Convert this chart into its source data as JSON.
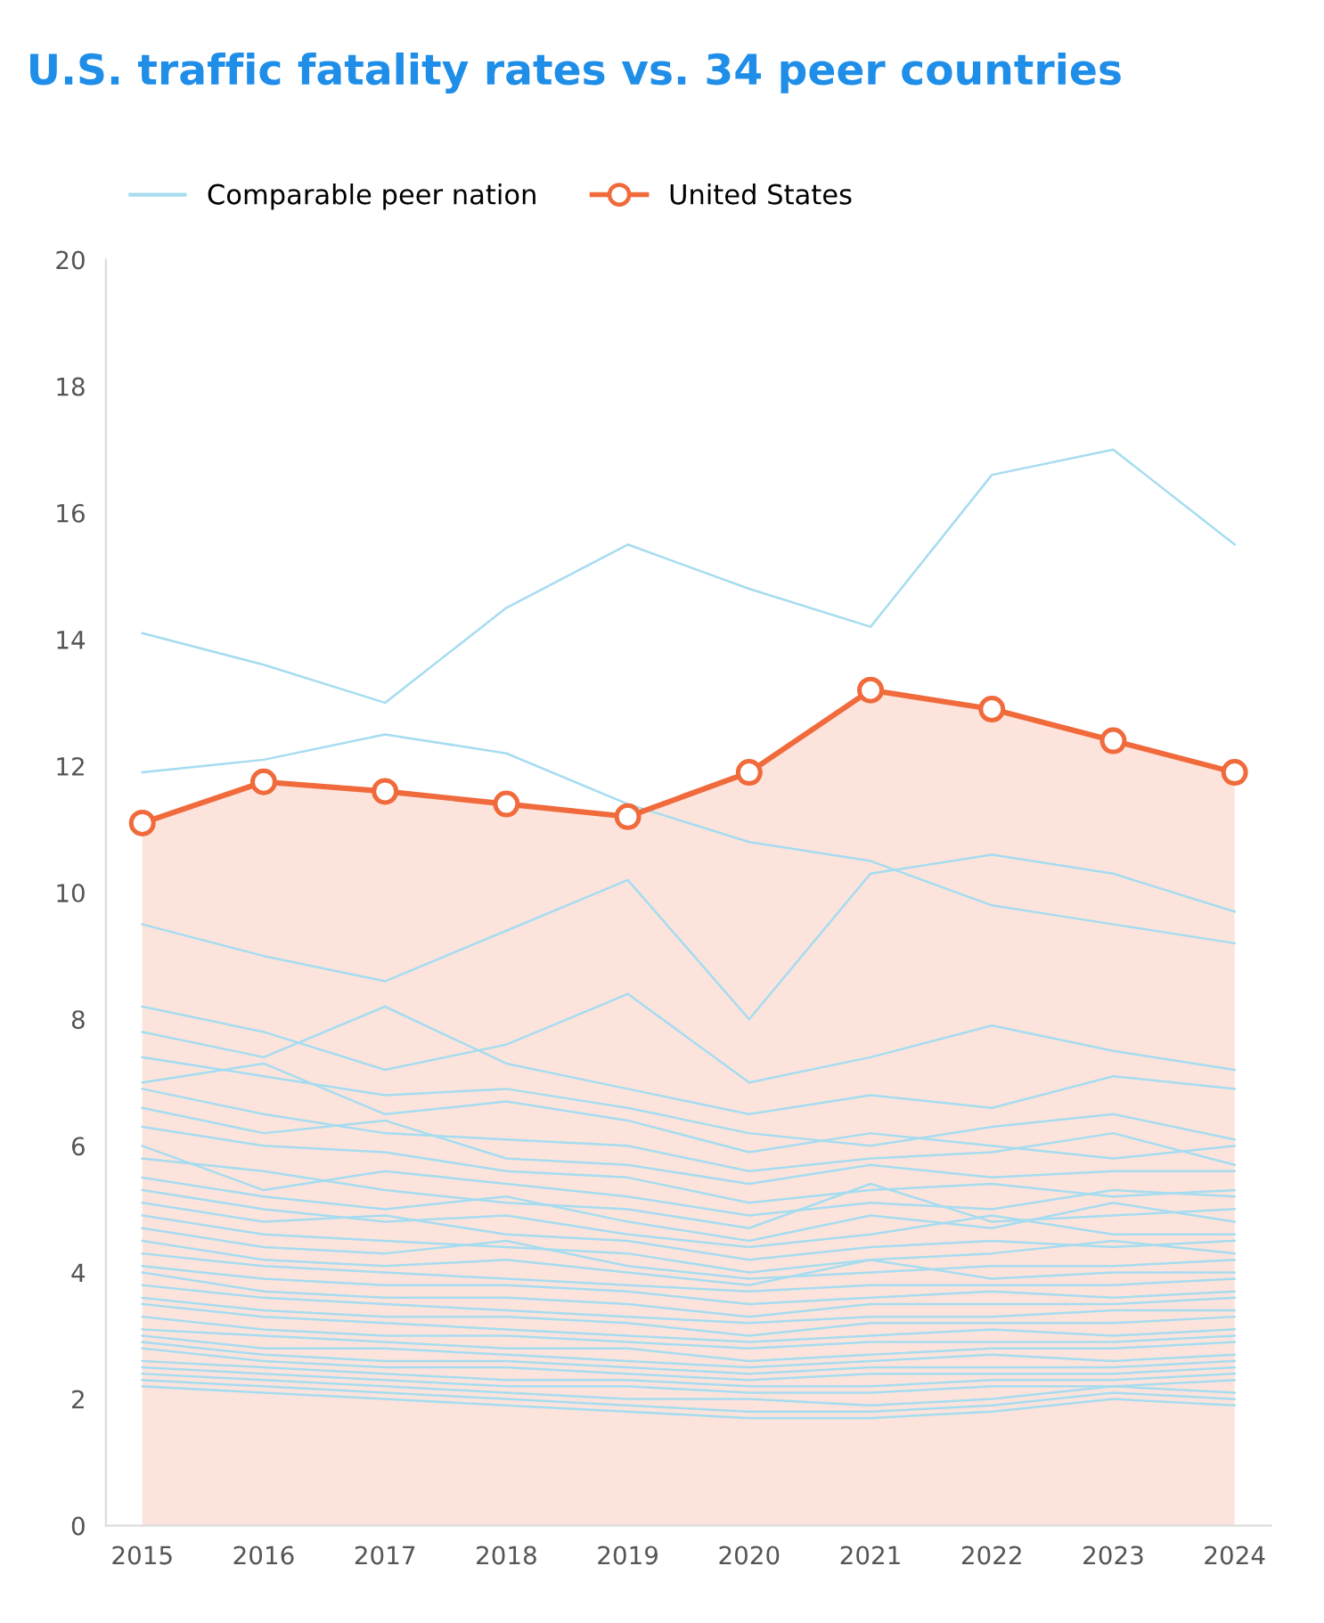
{
  "chart_data": {
    "type": "line",
    "title": "U.S. traffic fatality rates vs. 34 peer countries",
    "categories": [
      "2015",
      "2016",
      "2017",
      "2018",
      "2019",
      "2020",
      "2021",
      "2022",
      "2023",
      "2024"
    ],
    "ylim": [
      0,
      20
    ],
    "yticks": [
      0,
      2,
      4,
      6,
      8,
      10,
      12,
      14,
      16,
      18,
      20
    ],
    "grid": false,
    "legend": "top left",
    "series": [
      {
        "name": "Comparable peer nation",
        "type": "line",
        "color": "#a6dcf0",
        "values": [
          14.1,
          13.6,
          13.0,
          14.5,
          15.5,
          14.8,
          14.2,
          16.6,
          17.0,
          15.5
        ]
      },
      {
        "type": "line",
        "color": "#a6dcf0",
        "values": [
          9.5,
          9.0,
          8.6,
          9.4,
          10.2,
          8.0,
          10.3,
          10.6,
          10.3,
          9.7
        ]
      },
      {
        "type": "line",
        "color": "#a6dcf0",
        "values": [
          8.2,
          7.8,
          7.2,
          7.6,
          8.4,
          7.0,
          7.4,
          7.9,
          7.5,
          7.2
        ]
      },
      {
        "type": "line",
        "color": "#a6dcf0",
        "values": [
          7.8,
          7.4,
          8.2,
          7.3,
          6.9,
          6.5,
          6.8,
          6.6,
          7.1,
          6.9
        ]
      },
      {
        "type": "line",
        "color": "#a6dcf0",
        "values": [
          7.4,
          7.1,
          6.8,
          6.9,
          6.6,
          6.2,
          6.0,
          6.3,
          6.5,
          6.1
        ]
      },
      {
        "type": "line",
        "color": "#a6dcf0",
        "values": [
          7.0,
          7.3,
          6.5,
          6.7,
          6.4,
          5.9,
          6.2,
          6.0,
          5.8,
          6.0
        ]
      },
      {
        "type": "line",
        "color": "#a6dcf0",
        "values": [
          6.9,
          6.5,
          6.2,
          6.1,
          6.0,
          5.6,
          5.8,
          5.9,
          6.2,
          5.7
        ]
      },
      {
        "type": "line",
        "color": "#a6dcf0",
        "values": [
          6.6,
          6.2,
          6.4,
          5.8,
          5.7,
          5.4,
          5.7,
          5.5,
          5.6,
          5.6
        ]
      },
      {
        "type": "line",
        "color": "#a6dcf0",
        "values": [
          6.3,
          6.0,
          5.9,
          5.6,
          5.5,
          5.1,
          5.3,
          5.4,
          5.2,
          5.3
        ]
      },
      {
        "type": "line",
        "color": "#a6dcf0",
        "values": [
          6.0,
          5.3,
          5.6,
          5.4,
          5.2,
          4.9,
          5.1,
          5.0,
          5.3,
          5.2
        ]
      },
      {
        "type": "line",
        "color": "#a6dcf0",
        "values": [
          5.8,
          5.6,
          5.3,
          5.1,
          5.0,
          4.7,
          5.4,
          4.8,
          4.9,
          5.0
        ]
      },
      {
        "type": "line",
        "color": "#a6dcf0",
        "values": [
          5.5,
          5.2,
          5.0,
          5.2,
          4.8,
          4.5,
          4.9,
          4.7,
          5.1,
          4.8
        ]
      },
      {
        "type": "line",
        "color": "#a6dcf0",
        "values": [
          5.3,
          5.0,
          4.8,
          4.9,
          4.6,
          4.4,
          4.6,
          4.9,
          4.6,
          4.6
        ]
      },
      {
        "type": "line",
        "color": "#a6dcf0",
        "values": [
          5.1,
          4.8,
          4.9,
          4.6,
          4.5,
          4.2,
          4.4,
          4.5,
          4.4,
          4.5
        ]
      },
      {
        "type": "line",
        "color": "#a6dcf0",
        "values": [
          4.9,
          4.6,
          4.5,
          4.4,
          4.3,
          4.0,
          4.2,
          4.3,
          4.5,
          4.3
        ]
      },
      {
        "type": "line",
        "color": "#a6dcf0",
        "values": [
          4.7,
          4.4,
          4.3,
          4.5,
          4.1,
          3.9,
          4.0,
          4.1,
          4.1,
          4.2
        ]
      },
      {
        "type": "line",
        "color": "#a6dcf0",
        "values": [
          4.5,
          4.2,
          4.1,
          4.2,
          4.0,
          3.8,
          4.2,
          3.9,
          4.0,
          4.0
        ]
      },
      {
        "type": "line",
        "color": "#a6dcf0",
        "values": [
          4.3,
          4.1,
          4.0,
          3.9,
          3.8,
          3.7,
          3.8,
          3.8,
          3.8,
          3.9
        ]
      },
      {
        "type": "line",
        "color": "#a6dcf0",
        "values": [
          4.1,
          3.9,
          3.8,
          3.8,
          3.7,
          3.5,
          3.6,
          3.7,
          3.6,
          3.7
        ]
      },
      {
        "type": "line",
        "color": "#a6dcf0",
        "values": [
          4.0,
          3.7,
          3.6,
          3.6,
          3.5,
          3.3,
          3.5,
          3.5,
          3.5,
          3.6
        ]
      },
      {
        "type": "line",
        "color": "#a6dcf0",
        "values": [
          3.8,
          3.6,
          3.5,
          3.4,
          3.3,
          3.2,
          3.3,
          3.3,
          3.4,
          3.4
        ]
      },
      {
        "type": "line",
        "color": "#a6dcf0",
        "values": [
          3.6,
          3.4,
          3.3,
          3.3,
          3.2,
          3.0,
          3.2,
          3.2,
          3.2,
          3.3
        ]
      },
      {
        "type": "line",
        "color": "#a6dcf0",
        "values": [
          3.5,
          3.3,
          3.2,
          3.1,
          3.0,
          2.9,
          3.0,
          3.1,
          3.0,
          3.1
        ]
      },
      {
        "type": "line",
        "color": "#a6dcf0",
        "values": [
          3.3,
          3.1,
          3.0,
          3.0,
          2.9,
          2.8,
          2.9,
          2.9,
          2.9,
          3.0
        ]
      },
      {
        "type": "line",
        "color": "#a6dcf0",
        "values": [
          3.1,
          3.0,
          2.9,
          2.8,
          2.8,
          2.6,
          2.7,
          2.8,
          2.8,
          2.9
        ]
      },
      {
        "type": "line",
        "color": "#a6dcf0",
        "values": [
          3.0,
          2.8,
          2.8,
          2.7,
          2.6,
          2.5,
          2.6,
          2.7,
          2.6,
          2.7
        ]
      },
      {
        "type": "line",
        "color": "#a6dcf0",
        "values": [
          2.9,
          2.7,
          2.6,
          2.6,
          2.5,
          2.4,
          2.5,
          2.5,
          2.5,
          2.6
        ]
      },
      {
        "type": "line",
        "color": "#a6dcf0",
        "values": [
          2.8,
          2.6,
          2.5,
          2.5,
          2.4,
          2.3,
          2.4,
          2.4,
          2.4,
          2.5
        ]
      },
      {
        "type": "line",
        "color": "#a6dcf0",
        "values": [
          2.6,
          2.5,
          2.4,
          2.3,
          2.3,
          2.2,
          2.2,
          2.3,
          2.3,
          2.4
        ]
      },
      {
        "type": "line",
        "color": "#a6dcf0",
        "values": [
          2.5,
          2.4,
          2.3,
          2.2,
          2.2,
          2.1,
          2.1,
          2.2,
          2.2,
          2.3
        ]
      },
      {
        "type": "line",
        "color": "#a6dcf0",
        "values": [
          2.4,
          2.3,
          2.2,
          2.1,
          2.0,
          2.0,
          1.9,
          2.0,
          2.2,
          2.1
        ]
      },
      {
        "type": "line",
        "color": "#a6dcf0",
        "values": [
          2.3,
          2.2,
          2.1,
          2.0,
          1.9,
          1.8,
          1.8,
          1.9,
          2.1,
          2.0
        ]
      },
      {
        "type": "line",
        "color": "#a6dcf0",
        "values": [
          2.2,
          2.1,
          2.0,
          1.9,
          1.8,
          1.7,
          1.7,
          1.8,
          2.0,
          1.9
        ]
      },
      {
        "type": "line",
        "color": "#a6dcf0",
        "values": [
          11.9,
          12.1,
          12.5,
          12.2,
          11.4,
          10.8,
          10.5,
          9.8,
          9.5,
          9.2
        ]
      },
      {
        "name": "United States",
        "type": "area",
        "marker": "circle",
        "color": "#f06a3c",
        "values": [
          11.1,
          11.75,
          11.6,
          11.4,
          11.2,
          11.9,
          13.2,
          12.9,
          12.4,
          11.9
        ]
      }
    ]
  }
}
